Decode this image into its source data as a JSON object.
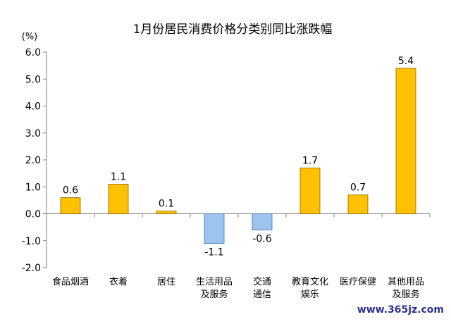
{
  "chart_data": {
    "type": "bar",
    "title": "1月份居民消费价格分类别同比涨跌幅",
    "unit_label": "(%)",
    "categories": [
      [
        "食品烟酒"
      ],
      [
        "衣着"
      ],
      [
        "居住"
      ],
      [
        "生活用品",
        "及服务"
      ],
      [
        "交通",
        "通信"
      ],
      [
        "教育文化",
        "娱乐"
      ],
      [
        "医疗保健"
      ],
      [
        "其他用品",
        "及服务"
      ]
    ],
    "values": [
      0.6,
      1.1,
      0.1,
      -1.1,
      -0.6,
      1.7,
      0.7,
      5.4
    ],
    "data_labels": [
      "0.6",
      "1.1",
      "0.1",
      "-1.1",
      "-0.6",
      "1.7",
      "0.7",
      "5.4"
    ],
    "ylim": [
      -2.0,
      6.0
    ],
    "yticks": [
      "-2.0",
      "-1.0",
      "0.0",
      "1.0",
      "2.0",
      "3.0",
      "4.0",
      "5.0",
      "6.0"
    ],
    "ytick_values": [
      -2,
      -1,
      0,
      1,
      2,
      3,
      4,
      5,
      6
    ],
    "grid": false,
    "legend": "none",
    "colors": {
      "positive": "#FFC000",
      "positive_stroke": "#8a6a00",
      "negative": "#9DC3F0",
      "negative_stroke": "#3f6fa8",
      "axis": "#7f7f7f"
    }
  },
  "watermark": "www.365jz.com"
}
